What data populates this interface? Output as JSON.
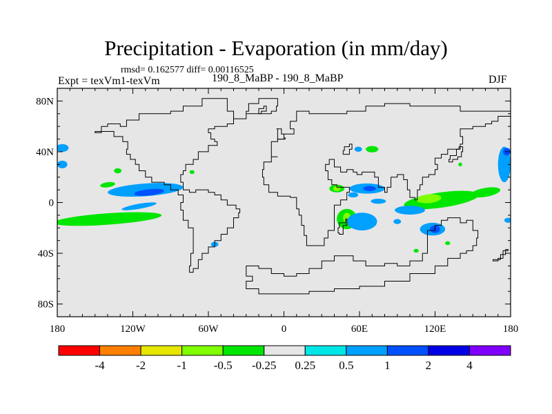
{
  "title": "Precipitation - Evaporation (in mm/day)",
  "stats": "rmsd= 0.162577 diff= 0.00116525",
  "expt": "Expt = texVm1-texVm",
  "case": "190_8_MaBP - 190_8_MaBP",
  "season": "DJF",
  "map": {
    "lon_range": [
      -180,
      180
    ],
    "lat_range": [
      -90,
      90
    ],
    "land_color": "#e6e6e6",
    "y_ticks": [
      {
        "lat": 80,
        "label": "80N"
      },
      {
        "lat": 40,
        "label": "40N"
      },
      {
        "lat": 0,
        "label": "0"
      },
      {
        "lat": -40,
        "label": "40S"
      },
      {
        "lat": -80,
        "label": "80S"
      }
    ],
    "x_ticks": [
      {
        "lon": -180,
        "label": "180"
      },
      {
        "lon": -120,
        "label": "120W"
      },
      {
        "lon": -60,
        "label": "60W"
      },
      {
        "lon": 0,
        "label": "0"
      },
      {
        "lon": 60,
        "label": "60E"
      },
      {
        "lon": 120,
        "label": "120E"
      },
      {
        "lon": 180,
        "label": "180"
      }
    ]
  },
  "colorbar": {
    "colors": [
      "#ff0000",
      "#ff8000",
      "#e6e600",
      "#80ff00",
      "#00e600",
      "#e6e6e6",
      "#00e6e6",
      "#00a0ff",
      "#0050ff",
      "#0000e6",
      "#8000ff"
    ],
    "labels": [
      "-4",
      "-2",
      "-1",
      "-0.5",
      "-0.25",
      "0.25",
      "0.5",
      "1",
      "2",
      "4"
    ]
  },
  "anomalies": [
    {
      "cx": -176,
      "cy": 43,
      "rx": 5,
      "ry": 3,
      "rot": 0,
      "level": "0.5"
    },
    {
      "cx": -176,
      "cy": 30,
      "rx": 4,
      "ry": 3,
      "rot": 0,
      "level": "0.5"
    },
    {
      "cx": -140,
      "cy": 14,
      "rx": 6,
      "ry": 2,
      "rot": -8,
      "level": "-0.25"
    },
    {
      "cx": -132,
      "cy": 25,
      "rx": 3,
      "ry": 2,
      "rot": 0,
      "level": "-0.25"
    },
    {
      "cx": -110,
      "cy": 10,
      "rx": 30,
      "ry": 5,
      "rot": -4,
      "level": "0.5"
    },
    {
      "cx": -107,
      "cy": 8,
      "rx": 12,
      "ry": 2.5,
      "rot": -6,
      "level": "1"
    },
    {
      "cx": -140,
      "cy": -13,
      "rx": 43,
      "ry": 4.5,
      "rot": -4,
      "level": "-0.25"
    },
    {
      "cx": -115,
      "cy": -3,
      "rx": 14,
      "ry": 2,
      "rot": -10,
      "level": "0.5"
    },
    {
      "cx": -55,
      "cy": -33,
      "rx": 3,
      "ry": 2,
      "rot": 0,
      "level": "0.5"
    },
    {
      "cx": -73,
      "cy": 24,
      "rx": 2,
      "ry": 1.5,
      "rot": 0,
      "level": "-0.25"
    },
    {
      "cx": 42,
      "cy": 11,
      "rx": 6,
      "ry": 3,
      "rot": 0,
      "level": "-0.25"
    },
    {
      "cx": 42,
      "cy": 11,
      "rx": 3,
      "ry": 2,
      "rot": 0,
      "level": "-0.5"
    },
    {
      "cx": 66,
      "cy": 11,
      "rx": 14,
      "ry": 4,
      "rot": 0,
      "level": "0.5"
    },
    {
      "cx": 68,
      "cy": 11,
      "rx": 5,
      "ry": 2,
      "rot": 0,
      "level": "1"
    },
    {
      "cx": 70,
      "cy": 42,
      "rx": 5,
      "ry": 2.5,
      "rot": 0,
      "level": "-0.25"
    },
    {
      "cx": 59,
      "cy": 42,
      "rx": 3,
      "ry": 2,
      "rot": 0,
      "level": "0.5"
    },
    {
      "cx": 75,
      "cy": 1,
      "rx": 6,
      "ry": 2,
      "rot": 0,
      "level": "0.5"
    },
    {
      "cx": 55,
      "cy": 6,
      "rx": 4,
      "ry": 2,
      "rot": 0,
      "level": "0.5"
    },
    {
      "cx": 125,
      "cy": 2,
      "rx": 30,
      "ry": 6,
      "rot": -8,
      "level": "-0.25"
    },
    {
      "cx": 115,
      "cy": 3,
      "rx": 10,
      "ry": 3.5,
      "rot": -5,
      "level": "-0.5"
    },
    {
      "cx": 160,
      "cy": 8,
      "rx": 12,
      "ry": 3.5,
      "rot": -10,
      "level": "-0.25"
    },
    {
      "cx": 100,
      "cy": -6,
      "rx": 12,
      "ry": 3.5,
      "rot": 0,
      "level": "0.5"
    },
    {
      "cx": 50,
      "cy": -13,
      "rx": 8,
      "ry": 8,
      "rot": 0,
      "level": "-0.25"
    },
    {
      "cx": 50,
      "cy": -12,
      "rx": 3,
      "ry": 4,
      "rot": 0,
      "level": "-0.5"
    },
    {
      "cx": 62,
      "cy": -15,
      "rx": 12,
      "ry": 7,
      "rot": 0,
      "level": "0.5"
    },
    {
      "cx": 118,
      "cy": -21,
      "rx": 10,
      "ry": 5,
      "rot": 0,
      "level": "0.5"
    },
    {
      "cx": 120,
      "cy": -21,
      "rx": 4,
      "ry": 3,
      "rot": 0,
      "level": "1"
    },
    {
      "cx": 175,
      "cy": 30,
      "rx": 5,
      "ry": 14,
      "rot": 0,
      "level": "0.5"
    },
    {
      "cx": 177,
      "cy": 40,
      "rx": 3,
      "ry": 3,
      "rot": 0,
      "level": "1"
    },
    {
      "cx": 178,
      "cy": -14,
      "rx": 3,
      "ry": 2,
      "rot": 0,
      "level": "0.5"
    },
    {
      "cx": 105,
      "cy": -38,
      "rx": 2,
      "ry": 1.5,
      "rot": 0,
      "level": "-0.25"
    },
    {
      "cx": 130,
      "cy": -32,
      "rx": 2,
      "ry": 1.5,
      "rot": 0,
      "level": "-0.25"
    },
    {
      "cx": 140,
      "cy": 30,
      "rx": 1.5,
      "ry": 1.5,
      "rot": 0,
      "level": "-0.25"
    },
    {
      "cx": 90,
      "cy": -15,
      "rx": 3,
      "ry": 2,
      "rot": 0,
      "level": "0.5"
    }
  ],
  "coastlines": [
    {
      "name": "north-america-south-america",
      "points": [
        [
          -150,
          55
        ],
        [
          -145,
          60
        ],
        [
          -140,
          62
        ],
        [
          -130,
          60
        ],
        [
          -125,
          65
        ],
        [
          -115,
          70
        ],
        [
          -100,
          70
        ],
        [
          -90,
          72
        ],
        [
          -80,
          76
        ],
        [
          -65,
          82
        ],
        [
          -55,
          82
        ],
        [
          -45,
          72
        ],
        [
          -40,
          66
        ],
        [
          -35,
          66
        ],
        [
          -30,
          72
        ],
        [
          -28,
          78
        ],
        [
          -20,
          82
        ],
        [
          -10,
          82
        ],
        [
          -5,
          76
        ],
        [
          -6,
          72
        ],
        [
          -10,
          70
        ],
        [
          -18,
          70
        ],
        [
          -30,
          66
        ],
        [
          -40,
          62
        ],
        [
          -45,
          60
        ],
        [
          -55,
          58
        ],
        [
          -60,
          55
        ],
        [
          -58,
          50
        ],
        [
          -55,
          48
        ],
        [
          -53,
          45
        ],
        [
          -60,
          40
        ],
        [
          -68,
          34
        ],
        [
          -72,
          30
        ],
        [
          -78,
          25
        ],
        [
          -80,
          22
        ],
        [
          -82,
          16
        ],
        [
          -80,
          10
        ],
        [
          -75,
          8
        ],
        [
          -70,
          10
        ],
        [
          -60,
          8
        ],
        [
          -55,
          6
        ],
        [
          -50,
          2
        ],
        [
          -45,
          -2
        ],
        [
          -38,
          -5
        ],
        [
          -35,
          -8
        ],
        [
          -36,
          -12
        ],
        [
          -40,
          -20
        ],
        [
          -45,
          -25
        ],
        [
          -50,
          -30
        ],
        [
          -55,
          -35
        ],
        [
          -60,
          -40
        ],
        [
          -65,
          -45
        ],
        [
          -68,
          -52
        ],
        [
          -72,
          -55
        ],
        [
          -75,
          -50
        ],
        [
          -74,
          -40
        ],
        [
          -72,
          -30
        ],
        [
          -72,
          -20
        ],
        [
          -76,
          -14
        ],
        [
          -80,
          -6
        ],
        [
          -82,
          0
        ],
        [
          -80,
          6
        ],
        [
          -84,
          10
        ],
        [
          -90,
          14
        ],
        [
          -95,
          16
        ],
        [
          -105,
          20
        ],
        [
          -110,
          25
        ],
        [
          -115,
          30
        ],
        [
          -118,
          34
        ],
        [
          -122,
          38
        ],
        [
          -125,
          42
        ],
        [
          -124,
          48
        ],
        [
          -128,
          52
        ],
        [
          -135,
          56
        ],
        [
          -150,
          55
        ]
      ]
    },
    {
      "name": "eurasia-africa",
      "points": [
        [
          -10,
          36
        ],
        [
          -5,
          36
        ],
        [
          -10,
          32
        ],
        [
          -16,
          26
        ],
        [
          -17,
          20
        ],
        [
          -16,
          14
        ],
        [
          -12,
          8
        ],
        [
          -5,
          5
        ],
        [
          5,
          4
        ],
        [
          10,
          2
        ],
        [
          10,
          -5
        ],
        [
          12,
          -10
        ],
        [
          14,
          -18
        ],
        [
          16,
          -26
        ],
        [
          18,
          -34
        ],
        [
          22,
          -34
        ],
        [
          26,
          -34
        ],
        [
          32,
          -28
        ],
        [
          35,
          -22
        ],
        [
          40,
          -16
        ],
        [
          40,
          -10
        ],
        [
          40,
          -2
        ],
        [
          45,
          2
        ],
        [
          50,
          8
        ],
        [
          52,
          12
        ],
        [
          45,
          12
        ],
        [
          42,
          14
        ],
        [
          38,
          18
        ],
        [
          35,
          25
        ],
        [
          33,
          30
        ],
        [
          36,
          34
        ],
        [
          40,
          28
        ],
        [
          45,
          24
        ],
        [
          50,
          26
        ],
        [
          55,
          24
        ],
        [
          58,
          22
        ],
        [
          62,
          24
        ],
        [
          67,
          24
        ],
        [
          72,
          20
        ],
        [
          75,
          12
        ],
        [
          80,
          8
        ],
        [
          82,
          12
        ],
        [
          85,
          20
        ],
        [
          90,
          22
        ],
        [
          95,
          18
        ],
        [
          98,
          10
        ],
        [
          100,
          4
        ],
        [
          104,
          2
        ],
        [
          106,
          10
        ],
        [
          108,
          14
        ],
        [
          110,
          20
        ],
        [
          115,
          22
        ],
        [
          120,
          26
        ],
        [
          122,
          30
        ],
        [
          120,
          35
        ],
        [
          125,
          38
        ],
        [
          130,
          42
        ],
        [
          140,
          46
        ],
        [
          142,
          52
        ],
        [
          140,
          58
        ],
        [
          150,
          60
        ],
        [
          160,
          62
        ],
        [
          165,
          64
        ],
        [
          170,
          68
        ],
        [
          180,
          68
        ],
        [
          180,
          72
        ],
        [
          160,
          72
        ],
        [
          140,
          76
        ],
        [
          120,
          76
        ],
        [
          100,
          78
        ],
        [
          80,
          76
        ],
        [
          65,
          72
        ],
        [
          50,
          70
        ],
        [
          40,
          70
        ],
        [
          30,
          70
        ],
        [
          20,
          72
        ],
        [
          10,
          64
        ],
        [
          5,
          58
        ],
        [
          8,
          54
        ],
        [
          0,
          50
        ],
        [
          -5,
          48
        ],
        [
          -10,
          44
        ],
        [
          -10,
          36
        ]
      ]
    },
    {
      "name": "australia-antarctica",
      "points": [
        [
          -30,
          -50
        ],
        [
          -20,
          -52
        ],
        [
          -10,
          -56
        ],
        [
          0,
          -58
        ],
        [
          10,
          -56
        ],
        [
          20,
          -52
        ],
        [
          30,
          -46
        ],
        [
          40,
          -42
        ],
        [
          55,
          -46
        ],
        [
          65,
          -50
        ],
        [
          80,
          -48
        ],
        [
          90,
          -50
        ],
        [
          100,
          -46
        ],
        [
          110,
          -40
        ],
        [
          114,
          -32
        ],
        [
          114,
          -22
        ],
        [
          120,
          -18
        ],
        [
          125,
          -14
        ],
        [
          130,
          -12
        ],
        [
          136,
          -12
        ],
        [
          140,
          -16
        ],
        [
          145,
          -14
        ],
        [
          150,
          -22
        ],
        [
          154,
          -28
        ],
        [
          153,
          -34
        ],
        [
          150,
          -38
        ],
        [
          145,
          -40
        ],
        [
          140,
          -44
        ],
        [
          130,
          -50
        ],
        [
          120,
          -56
        ],
        [
          100,
          -62
        ],
        [
          80,
          -66
        ],
        [
          60,
          -68
        ],
        [
          40,
          -70
        ],
        [
          20,
          -72
        ],
        [
          0,
          -72
        ],
        [
          -20,
          -68
        ],
        [
          -30,
          -62
        ],
        [
          -25,
          -58
        ],
        [
          -30,
          -50
        ]
      ]
    },
    {
      "name": "islands",
      "points": [
        [
          -20,
          74
        ],
        [
          -16,
          76
        ],
        [
          -14,
          72
        ],
        [
          -18,
          70
        ],
        [
          -20,
          74
        ]
      ]
    },
    {
      "name": "caspian",
      "points": [
        [
          48,
          44
        ],
        [
          52,
          46
        ],
        [
          54,
          42
        ],
        [
          52,
          38
        ],
        [
          49,
          38
        ],
        [
          47,
          41
        ],
        [
          48,
          44
        ]
      ]
    },
    {
      "name": "madagascar",
      "points": [
        [
          44,
          -16
        ],
        [
          49,
          -13
        ],
        [
          50,
          -18
        ],
        [
          47,
          -25
        ],
        [
          44,
          -24
        ],
        [
          43,
          -20
        ],
        [
          44,
          -16
        ]
      ]
    },
    {
      "name": "japan",
      "points": [
        [
          131,
          32
        ],
        [
          134,
          34
        ],
        [
          138,
          36
        ],
        [
          141,
          40
        ],
        [
          142,
          44
        ],
        [
          139,
          42
        ],
        [
          137,
          37
        ],
        [
          132,
          34
        ],
        [
          131,
          32
        ]
      ]
    },
    {
      "name": "new-zealand",
      "points": [
        [
          166,
          -46
        ],
        [
          170,
          -44
        ],
        [
          174,
          -38
        ],
        [
          178,
          -37
        ],
        [
          176,
          -41
        ],
        [
          172,
          -45
        ],
        [
          166,
          -46
        ]
      ]
    },
    {
      "name": "uk",
      "points": [
        [
          -5,
          50
        ],
        [
          1,
          51
        ],
        [
          0,
          54
        ],
        [
          -2,
          58
        ],
        [
          -6,
          58
        ],
        [
          -5,
          54
        ],
        [
          -5,
          50
        ]
      ]
    }
  ]
}
